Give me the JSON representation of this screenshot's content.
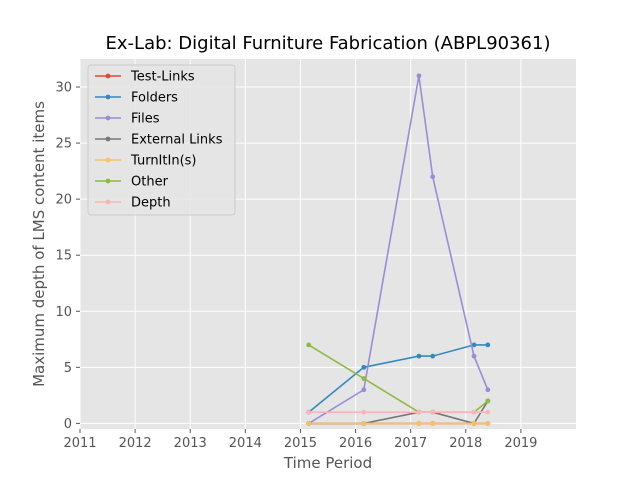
{
  "chart_data": {
    "type": "line",
    "title": "Ex-Lab: Digital Furniture Fabrication (ABPL90361)",
    "xlabel": "Time Period",
    "ylabel": "Maximum depth of LMS content items",
    "xlim": [
      2011,
      2020
    ],
    "ylim": [
      -0.5,
      32.5
    ],
    "xticks": [
      2011,
      2012,
      2013,
      2014,
      2015,
      2016,
      2017,
      2018,
      2019
    ],
    "yticks": [
      0,
      5,
      10,
      15,
      20,
      25,
      30
    ],
    "grid": true,
    "legend_position": "top-left",
    "x": [
      2015.15,
      2016.15,
      2017.15,
      2017.4,
      2018.15,
      2018.4
    ],
    "series": [
      {
        "name": "Test-Links",
        "color": "#E24A33",
        "values": [
          0,
          0,
          0,
          0,
          0,
          0
        ]
      },
      {
        "name": "Folders",
        "color": "#348ABD",
        "values": [
          1,
          5,
          6,
          6,
          7,
          7
        ]
      },
      {
        "name": "Files",
        "color": "#988ED5",
        "values": [
          0,
          3,
          31,
          22,
          6,
          3
        ]
      },
      {
        "name": "External Links",
        "color": "#777777",
        "values": [
          0,
          0,
          1,
          1,
          0,
          2
        ]
      },
      {
        "name": "TurnItIn(s)",
        "color": "#FBC15E",
        "values": [
          0,
          0,
          0,
          0,
          0,
          0
        ]
      },
      {
        "name": "Other",
        "color": "#8EBA42",
        "values": [
          7,
          4,
          1,
          1,
          1,
          2
        ]
      },
      {
        "name": "Depth",
        "color": "#FFB5B8",
        "values": [
          1,
          1,
          1,
          1,
          1,
          1
        ]
      }
    ]
  }
}
